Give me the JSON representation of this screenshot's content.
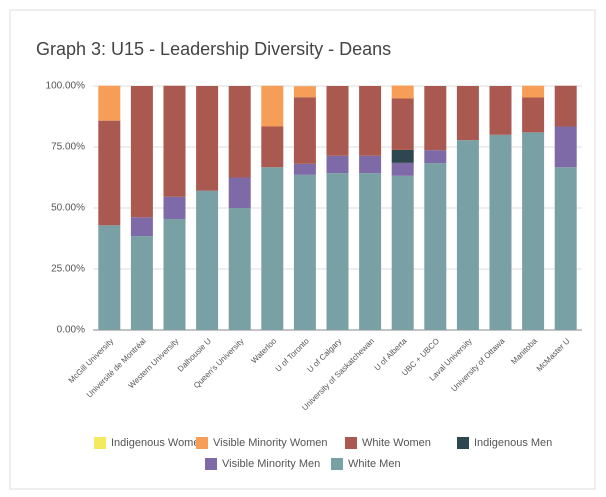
{
  "chart_data": {
    "type": "stacked_bar",
    "title": "Graph 3: U15 - Leadership Diversity - Deans",
    "categories": [
      "McGill University",
      "Université de Montréal",
      "Western University",
      "Dalhousie U",
      "Queen's University",
      "Waterloo",
      "U of Toronto",
      "U of Calgary",
      "University of Saskatchewan",
      "U of Alberta",
      "UBC + UBCO",
      "Laval University",
      "University of Ottawa",
      "Manitoba",
      "McMaster U"
    ],
    "series": [
      {
        "name": "Indigenous Women",
        "color": "#f4ea5e",
        "values": [
          0,
          0,
          0,
          0,
          0,
          0,
          0,
          0,
          0,
          0,
          0,
          0,
          0,
          0,
          0
        ]
      },
      {
        "name": "Visible Minority Women",
        "color": "#f69d57",
        "values": [
          14.3,
          0,
          0,
          0,
          0,
          16.7,
          4.5,
          0,
          0,
          5.3,
          0,
          0,
          0,
          4.8,
          0
        ]
      },
      {
        "name": "White Women",
        "color": "#a9594f",
        "values": [
          42.9,
          53.8,
          45.5,
          42.9,
          37.5,
          16.7,
          27.3,
          28.6,
          28.6,
          21.1,
          26.3,
          22.2,
          20,
          14.3,
          16.7
        ]
      },
      {
        "name": "Indigenous Men",
        "color": "#2e4650",
        "values": [
          0,
          0,
          0,
          0,
          0,
          0,
          0,
          0,
          0,
          5.3,
          0,
          0,
          0,
          0,
          0
        ]
      },
      {
        "name": "Visible Minority Men",
        "color": "#7e6aa6",
        "values": [
          0,
          7.7,
          9.1,
          0,
          12.5,
          0,
          4.5,
          7.1,
          7.1,
          5.3,
          5.3,
          0,
          0,
          0,
          16.7
        ]
      },
      {
        "name": "White Men",
        "color": "#79a1a5",
        "values": [
          42.9,
          38.5,
          45.5,
          57.1,
          50,
          66.7,
          63.6,
          64.3,
          64.3,
          63.2,
          68.4,
          77.8,
          80,
          81,
          66.7
        ]
      }
    ],
    "ylim": [
      0,
      100
    ],
    "yticks": [
      {
        "value": 0,
        "label": "0.00%"
      },
      {
        "value": 25,
        "label": "25.00%"
      },
      {
        "value": 50,
        "label": "50.00%"
      },
      {
        "value": 75,
        "label": "75.00%"
      },
      {
        "value": 100,
        "label": "100.00%"
      }
    ],
    "grid": true,
    "legend": "bottom"
  }
}
